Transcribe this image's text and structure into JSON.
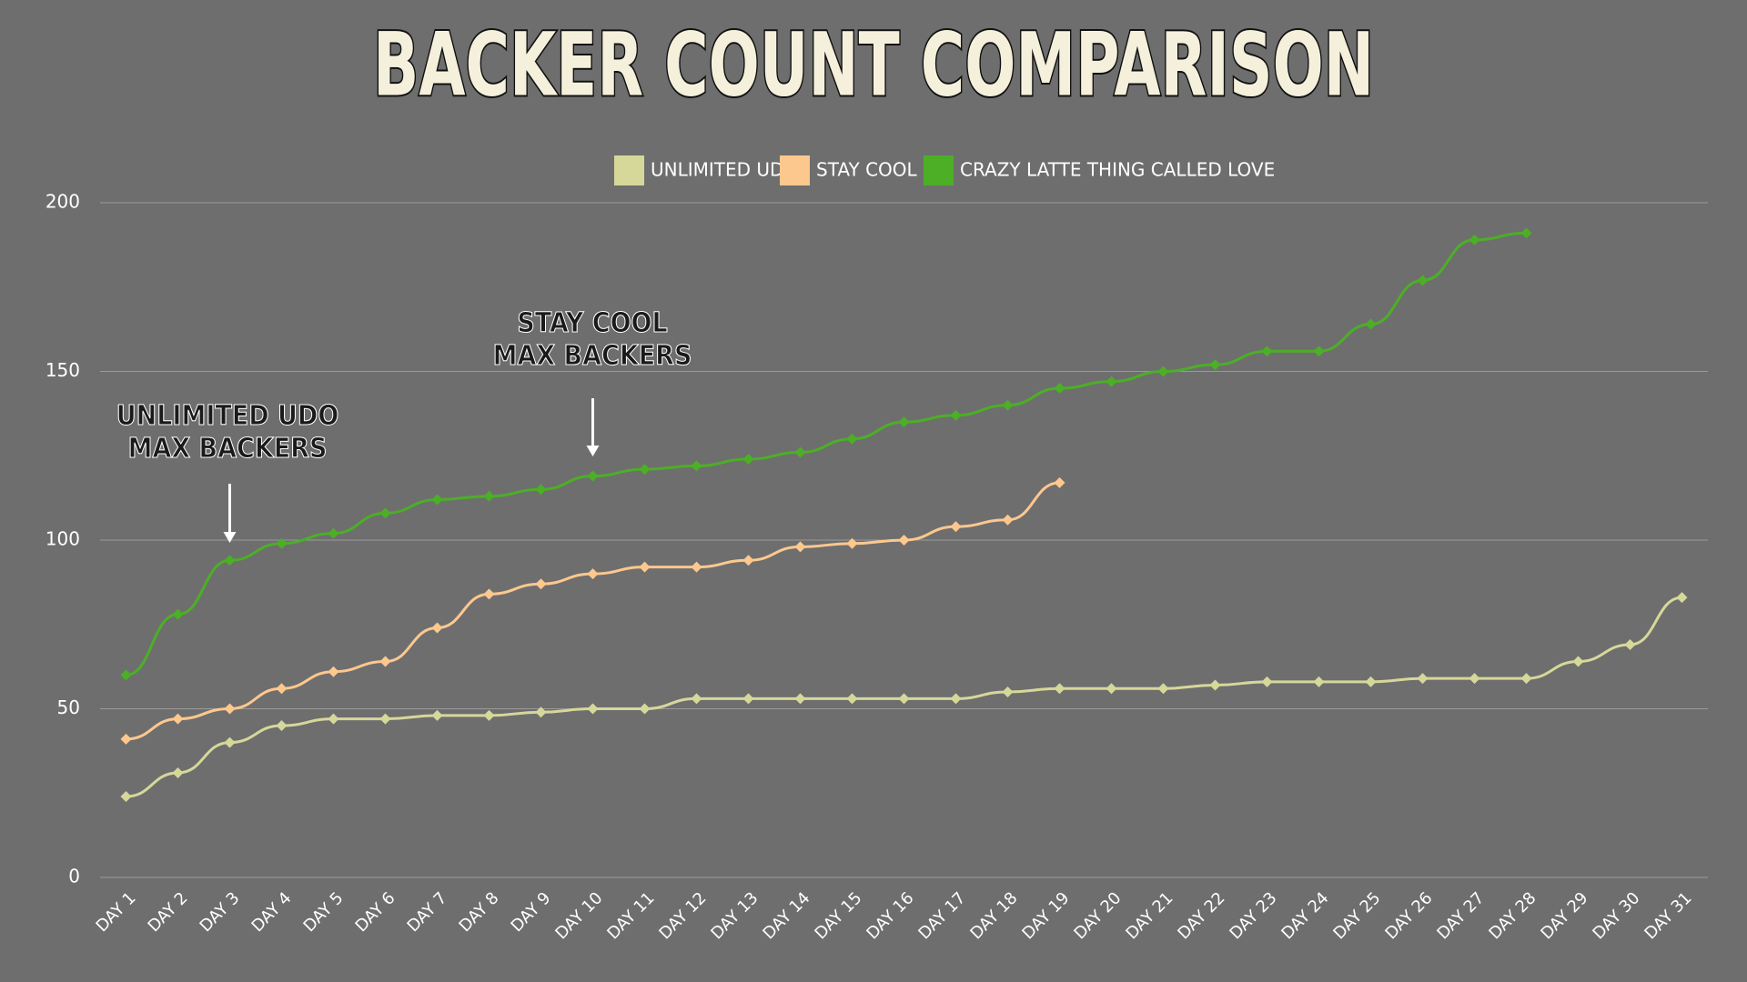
{
  "chart_data": {
    "type": "line",
    "title": "BACKER COUNT COMPARISON",
    "categories": [
      "DAY 1",
      "DAY 2",
      "DAY 3",
      "DAY 4",
      "DAY 5",
      "DAY 6",
      "DAY 7",
      "DAY 8",
      "DAY 9",
      "DAY 10",
      "DAY 11",
      "DAY 12",
      "DAY 13",
      "DAY 14",
      "DAY 15",
      "DAY 16",
      "DAY 17",
      "DAY 18",
      "DAY 19",
      "DAY 20",
      "DAY 21",
      "DAY 22",
      "DAY 23",
      "DAY 24",
      "DAY 25",
      "DAY 26",
      "DAY 27",
      "DAY 28",
      "DAY 29",
      "DAY 30",
      "DAY 31"
    ],
    "series": [
      {
        "name": "UNLIMITED UDO",
        "color": "#d6d89a",
        "values": [
          24,
          31,
          40,
          45,
          47,
          47,
          48,
          48,
          49,
          50,
          50,
          53,
          53,
          53,
          53,
          53,
          53,
          55,
          56,
          56,
          56,
          57,
          58,
          58,
          58,
          59,
          59,
          59,
          64,
          69,
          83
        ]
      },
      {
        "name": "STAY COOL",
        "color": "#fdc88e",
        "values": [
          41,
          47,
          50,
          56,
          61,
          64,
          74,
          84,
          87,
          90,
          92,
          92,
          94,
          98,
          99,
          100,
          104,
          106,
          117,
          null,
          null,
          null,
          null,
          null,
          null,
          null,
          null,
          null,
          null,
          null,
          null
        ]
      },
      {
        "name": "CRAZY LATTE THING CALLED LOVE",
        "color": "#4caf26",
        "values": [
          60,
          78,
          94,
          99,
          102,
          108,
          112,
          113,
          115,
          119,
          121,
          122,
          124,
          126,
          130,
          135,
          137,
          140,
          145,
          147,
          150,
          152,
          156,
          156,
          164,
          177,
          189,
          191,
          null,
          null,
          null
        ]
      }
    ],
    "ylim": [
      0,
      200
    ],
    "yticks": [
      0,
      50,
      100,
      150,
      200
    ],
    "grid": true,
    "annotations": [
      "UNLIMITED UDO\nMAX BACKERS",
      "STAY COOL\nMAX BACKERS"
    ]
  }
}
